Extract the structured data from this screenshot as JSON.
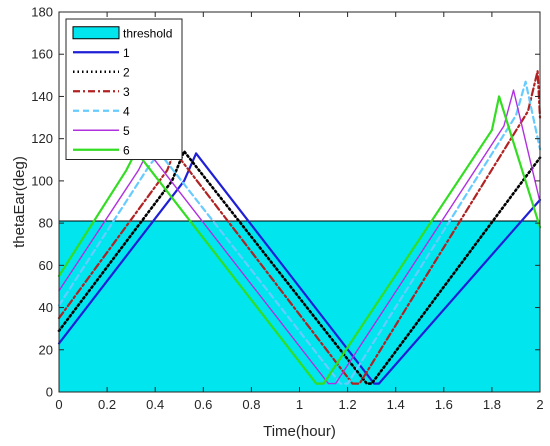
{
  "chart_data": {
    "type": "line",
    "xlabel": "Time(hour)",
    "ylabel": "thetaEar(deg)",
    "xlim": [
      0,
      2
    ],
    "ylim": [
      0,
      180
    ],
    "x_ticks": [
      "0",
      "0.2",
      "0.4",
      "0.6",
      "0.8",
      "1",
      "1.2",
      "1.4",
      "1.6",
      "1.8",
      "2"
    ],
    "y_ticks": [
      "0",
      "20",
      "40",
      "60",
      "80",
      "100",
      "120",
      "140",
      "160",
      "180"
    ],
    "grid": false,
    "legend_position": "top-left",
    "threshold": {
      "name": "threshold",
      "value": 81,
      "color": "#00e5ee"
    },
    "series": [
      {
        "name": "1",
        "color": "#1f1fd6",
        "dash": "solid",
        "width": 2.2,
        "x": [
          0,
          0.52,
          0.57,
          1.31,
          1.33,
          2.0
        ],
        "y": [
          23,
          100,
          113,
          4,
          4,
          91
        ]
      },
      {
        "name": "2",
        "color": "#000000",
        "dash": "dotted",
        "width": 2.6,
        "x": [
          0,
          0.47,
          0.52,
          1.28,
          1.3,
          2.0
        ],
        "y": [
          29,
          100,
          114,
          4,
          4,
          111
        ]
      },
      {
        "name": "3",
        "color": "#b22222",
        "dash": "dashdot",
        "width": 2.2,
        "x": [
          0,
          0.45,
          0.48,
          1.22,
          1.25,
          1.95,
          1.99,
          2.0
        ],
        "y": [
          35,
          105,
          114,
          4,
          4,
          133,
          152,
          130
        ]
      },
      {
        "name": "4",
        "color": "#66ccff",
        "dash": "dashed",
        "width": 2.2,
        "x": [
          0,
          0.38,
          0.42,
          1.17,
          1.2,
          1.9,
          1.94,
          2.0
        ],
        "y": [
          41,
          108,
          113,
          4,
          4,
          131,
          147,
          115
        ]
      },
      {
        "name": "5",
        "color": "#b030e0",
        "dash": "solid",
        "width": 1.4,
        "x": [
          0,
          0.33,
          0.37,
          1.12,
          1.15,
          1.85,
          1.89,
          2.0
        ],
        "y": [
          48,
          105,
          114,
          4,
          4,
          126,
          143,
          90
        ]
      },
      {
        "name": "6",
        "color": "#33dd22",
        "dash": "solid",
        "width": 2.2,
        "x": [
          0,
          0.28,
          0.32,
          1.07,
          1.1,
          1.8,
          1.83,
          2.0
        ],
        "y": [
          55,
          105,
          114,
          4,
          4,
          124,
          140,
          78
        ]
      }
    ]
  }
}
